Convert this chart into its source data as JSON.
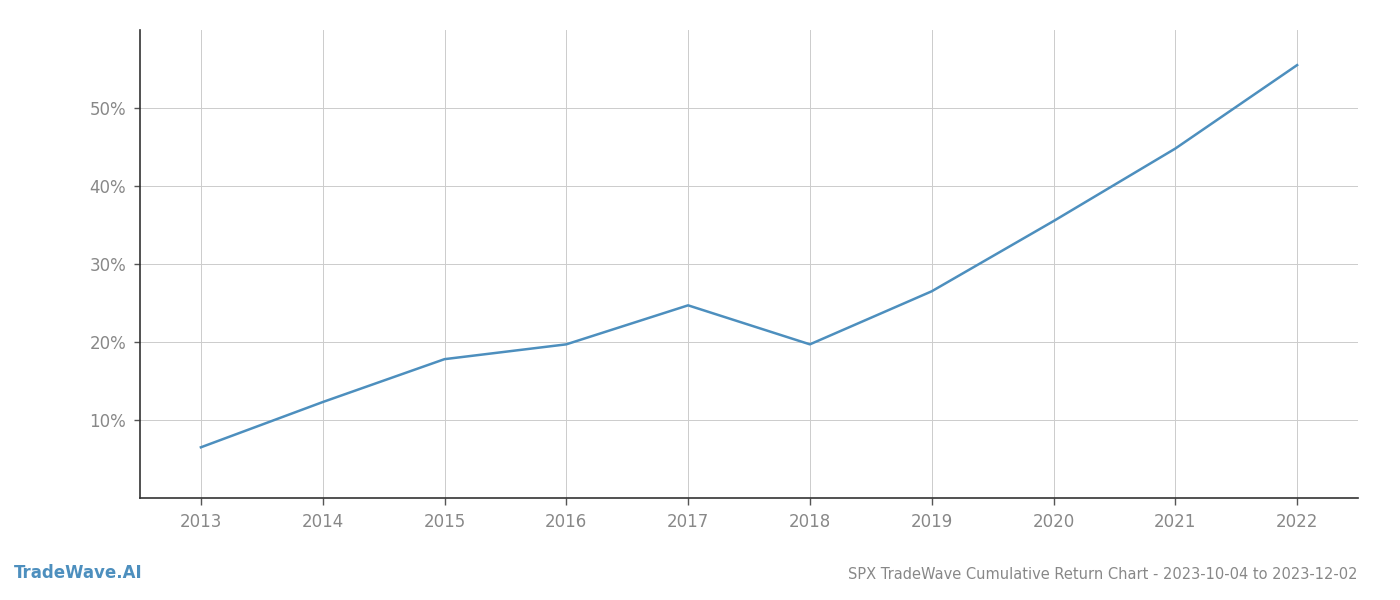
{
  "title": "SPX TradeWave Cumulative Return Chart - 2023-10-04 to 2023-12-02",
  "watermark": "TradeWave.AI",
  "x_values": [
    2013,
    2014,
    2015,
    2016,
    2017,
    2018,
    2019,
    2020,
    2021,
    2022
  ],
  "y_values": [
    0.065,
    0.123,
    0.178,
    0.197,
    0.247,
    0.197,
    0.265,
    0.355,
    0.448,
    0.555
  ],
  "line_color": "#4d8fbe",
  "background_color": "#ffffff",
  "grid_color": "#cccccc",
  "text_color": "#888888",
  "ylim": [
    0.0,
    0.6
  ],
  "xlim": [
    2012.5,
    2022.5
  ],
  "yticks": [
    0.1,
    0.2,
    0.3,
    0.4,
    0.5
  ],
  "xticks": [
    2013,
    2014,
    2015,
    2016,
    2017,
    2018,
    2019,
    2020,
    2021,
    2022
  ],
  "line_width": 1.8,
  "title_fontsize": 10.5,
  "tick_fontsize": 12,
  "watermark_fontsize": 12
}
